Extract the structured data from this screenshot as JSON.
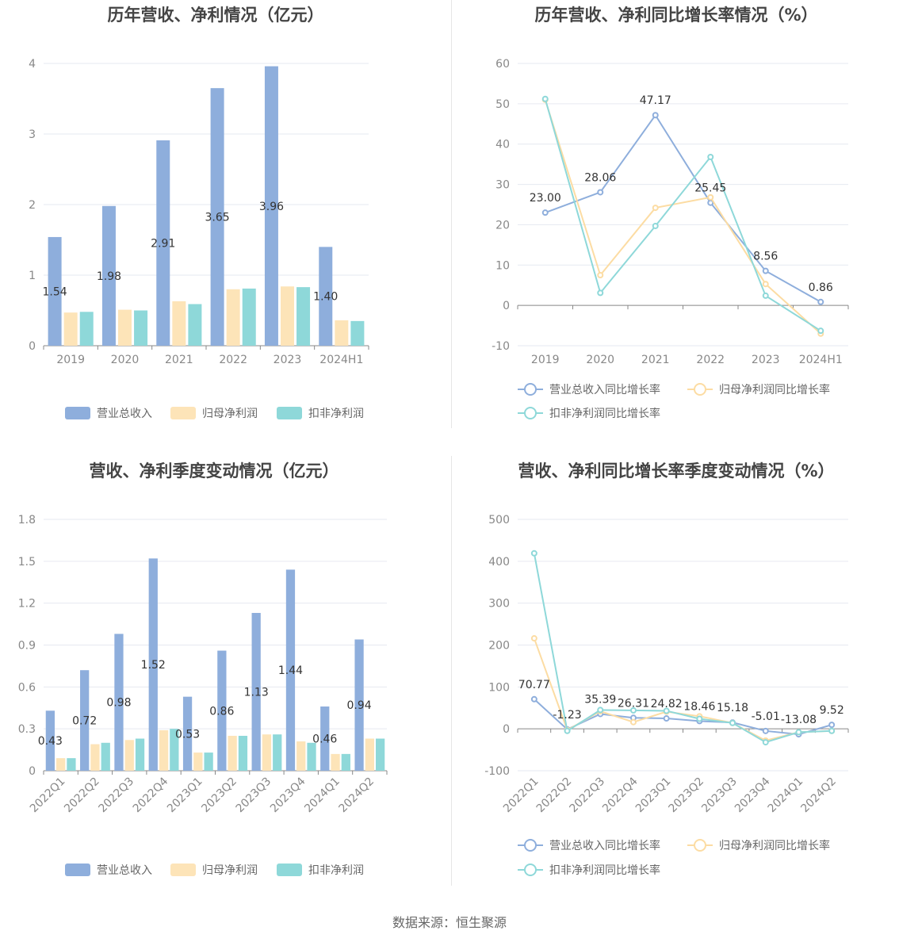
{
  "source_text": "数据来源：恒生聚源",
  "colors": {
    "revenue": "#8eaedc",
    "net_profit": "#fde4b8",
    "deducted_profit": "#8ed8d9",
    "revenue_line": "#8eaedc",
    "net_profit_line": "#fcdca3",
    "deducted_profit_line": "#8ed8d9",
    "grid": "#e6e9f0",
    "axis": "#888888"
  },
  "chart_data": [
    {
      "id": "annual-bar",
      "type": "bar",
      "title": "历年营收、净利情况（亿元）",
      "categories": [
        "2019",
        "2020",
        "2021",
        "2022",
        "2023",
        "2024H1"
      ],
      "ylim": [
        0,
        4
      ],
      "yticks": [
        "0",
        "1",
        "2",
        "3",
        "4"
      ],
      "grid": true,
      "legend_position": "bottom",
      "series": [
        {
          "name": "营业总收入",
          "values": [
            1.54,
            1.98,
            2.91,
            3.65,
            3.96,
            1.4
          ],
          "labels": [
            "1.54",
            "1.98",
            "2.91",
            "3.65",
            "3.96",
            "1.40"
          ]
        },
        {
          "name": "归母净利润",
          "values": [
            0.47,
            0.51,
            0.63,
            0.8,
            0.84,
            0.36
          ]
        },
        {
          "name": "扣非净利润",
          "values": [
            0.48,
            0.5,
            0.59,
            0.81,
            0.83,
            0.35
          ]
        }
      ]
    },
    {
      "id": "annual-line",
      "type": "line",
      "title": "历年营收、净利同比增长率情况（%）",
      "categories": [
        "2019",
        "2020",
        "2021",
        "2022",
        "2023",
        "2024H1"
      ],
      "ylim": [
        -10,
        60
      ],
      "yticks": [
        "-10",
        "0",
        "10",
        "20",
        "30",
        "40",
        "50",
        "60"
      ],
      "grid": true,
      "legend_position": "bottom",
      "series": [
        {
          "name": "营业总收入同比增长率",
          "values": [
            23.0,
            28.06,
            47.17,
            25.45,
            8.56,
            0.86
          ],
          "labels": [
            "23.00",
            "28.06",
            "47.17",
            "25.45",
            "8.56",
            "0.86"
          ]
        },
        {
          "name": "归母净利润同比增长率",
          "values": [
            51.0,
            7.5,
            24.2,
            26.8,
            5.3,
            -7.0
          ]
        },
        {
          "name": "扣非净利润同比增长率",
          "values": [
            51.2,
            3.1,
            19.7,
            36.8,
            2.4,
            -6.3
          ]
        }
      ]
    },
    {
      "id": "quarterly-bar",
      "type": "bar",
      "title": "营收、净利季度变动情况（亿元）",
      "categories": [
        "2022Q1",
        "2022Q2",
        "2022Q3",
        "2022Q4",
        "2023Q1",
        "2023Q2",
        "2023Q3",
        "2023Q4",
        "2024Q1",
        "2024Q2"
      ],
      "ylim": [
        0,
        1.8
      ],
      "yticks": [
        "0",
        "0.3",
        "0.6",
        "0.9",
        "1.2",
        "1.5",
        "1.8"
      ],
      "grid": true,
      "legend_position": "bottom",
      "series": [
        {
          "name": "营业总收入",
          "values": [
            0.43,
            0.72,
            0.98,
            1.52,
            0.53,
            0.86,
            1.13,
            1.44,
            0.46,
            0.94
          ],
          "labels": [
            "0.43",
            "0.72",
            "0.98",
            "1.52",
            "0.53",
            "0.86",
            "1.13",
            "1.44",
            "0.46",
            "0.94"
          ]
        },
        {
          "name": "归母净利润",
          "values": [
            0.09,
            0.19,
            0.22,
            0.29,
            0.13,
            0.25,
            0.26,
            0.21,
            0.12,
            0.23
          ]
        },
        {
          "name": "扣非净利润",
          "values": [
            0.09,
            0.2,
            0.23,
            0.3,
            0.13,
            0.25,
            0.26,
            0.2,
            0.12,
            0.23
          ]
        }
      ]
    },
    {
      "id": "quarterly-line",
      "type": "line",
      "title": "营收、净利同比增长率季度变动情况（%）",
      "categories": [
        "2022Q1",
        "2022Q2",
        "2022Q3",
        "2022Q4",
        "2023Q1",
        "2023Q2",
        "2023Q3",
        "2023Q4",
        "2024Q1",
        "2024Q2"
      ],
      "ylim": [
        -100,
        500
      ],
      "yticks": [
        "-100",
        "0",
        "100",
        "200",
        "300",
        "400",
        "500"
      ],
      "grid": true,
      "legend_position": "bottom",
      "series": [
        {
          "name": "营业总收入同比增长率",
          "values": [
            70.77,
            -1.23,
            35.39,
            26.31,
            24.82,
            18.46,
            15.18,
            -5.01,
            -13.08,
            9.52
          ],
          "labels": [
            "70.77",
            "-1.23",
            "35.39",
            "26.31",
            "24.82",
            "18.46",
            "15.18",
            "-5.01",
            "-13.08",
            "9.52"
          ]
        },
        {
          "name": "归母净利润同比增长率",
          "values": [
            216,
            -3,
            42,
            16,
            41,
            30,
            14,
            -28,
            -8,
            -5
          ]
        },
        {
          "name": "扣非净利润同比增长率",
          "values": [
            419,
            -5,
            45,
            44,
            43,
            24,
            14,
            -32,
            -8,
            -5
          ]
        }
      ]
    }
  ]
}
